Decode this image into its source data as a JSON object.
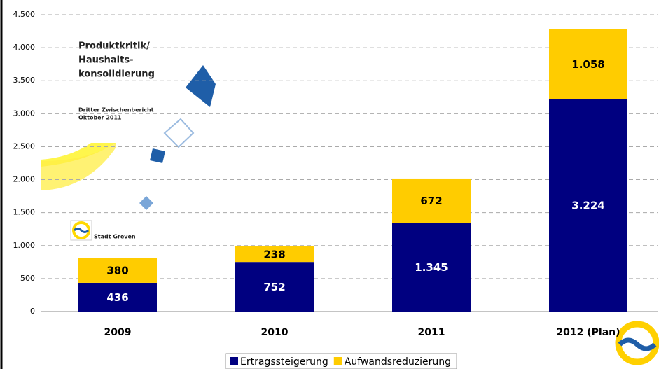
{
  "chart_data": {
    "type": "stacked_bar",
    "categories": [
      "2009",
      "2010",
      "2011",
      "2012 (Plan)"
    ],
    "series": [
      {
        "name": "Ertragssteigerung",
        "color": "#000080",
        "values": [
          436,
          752,
          1345,
          3224
        ],
        "value_labels": [
          "436",
          "752",
          "1.345",
          "3.224"
        ]
      },
      {
        "name": "Aufwandsreduzierung",
        "color": "#ffcc00",
        "values": [
          380,
          238,
          672,
          1058
        ],
        "value_labels": [
          "380",
          "238",
          "672",
          "1.058"
        ]
      }
    ],
    "ylim": [
      0,
      4500
    ],
    "yticks": [
      0,
      500,
      {
        "value": 1000,
        "label": "1.000"
      },
      {
        "value": 1500,
        "label": "1.500"
      },
      {
        "value": 2000,
        "label": "2.000"
      },
      {
        "value": 2500,
        "label": "2.500"
      },
      {
        "value": 3000,
        "label": "3.000"
      },
      {
        "value": 3500,
        "label": "3.500"
      },
      {
        "value": 4000,
        "label": "4.000"
      },
      {
        "value": 4500,
        "label": "4.500"
      }
    ],
    "grid": true,
    "legend": "bottom",
    "annotations": [
      "Produktkritik/",
      "Haushalts-",
      "konsolidierung",
      "Dritter Zwischenbericht",
      "Oktober 2011",
      "Stadt Greven"
    ]
  }
}
